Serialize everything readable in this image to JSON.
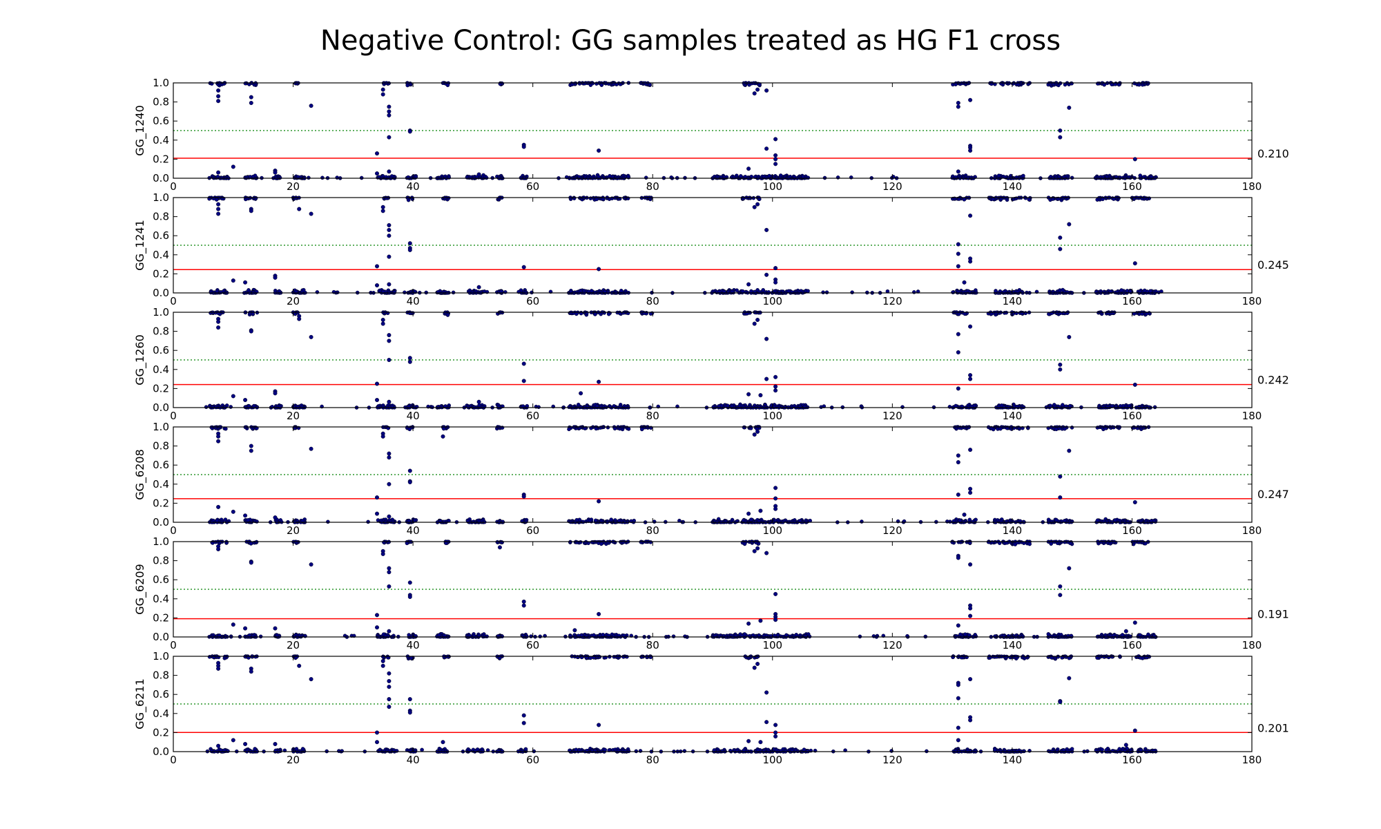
{
  "figure": {
    "title": "Negative Control: GG samples treated as HG F1 cross"
  },
  "chart_data": [
    {
      "type": "scatter",
      "ylabel": "GG_1240",
      "threshold": 0.21,
      "threshold_label": "0.210",
      "xlim": [
        0,
        180
      ],
      "ylim": [
        0,
        1.0
      ],
      "reference_line": 0.5,
      "xticks": [
        0,
        20,
        40,
        60,
        80,
        100,
        120,
        140,
        160,
        180
      ],
      "yticks": [
        0.0,
        0.2,
        0.4,
        0.6,
        0.8,
        1.0
      ],
      "marker_color": "#000080",
      "threshold_color": "#ff0000",
      "reference_color": "#008000",
      "points": [
        [
          7.5,
          0.92
        ],
        [
          7.5,
          0.86
        ],
        [
          7.5,
          0.81
        ],
        [
          13,
          0.85
        ],
        [
          13,
          0.79
        ],
        [
          23,
          0.76
        ],
        [
          35,
          0.93
        ],
        [
          35,
          0.88
        ],
        [
          36,
          0.75
        ],
        [
          36,
          0.7
        ],
        [
          36,
          0.66
        ],
        [
          36,
          0.43
        ],
        [
          39.5,
          0.5
        ],
        [
          39.5,
          0.49
        ],
        [
          58.5,
          0.35
        ],
        [
          58.5,
          0.33
        ],
        [
          71,
          0.29
        ],
        [
          34,
          0.26
        ],
        [
          99,
          0.31
        ],
        [
          100.5,
          0.41
        ],
        [
          100.5,
          0.24
        ],
        [
          100.5,
          0.2
        ],
        [
          100.5,
          0.15
        ],
        [
          97,
          0.89
        ],
        [
          97.5,
          0.93
        ],
        [
          99,
          0.92
        ],
        [
          131,
          0.79
        ],
        [
          131,
          0.75
        ],
        [
          133,
          0.82
        ],
        [
          133,
          0.34
        ],
        [
          133,
          0.32
        ],
        [
          133,
          0.29
        ],
        [
          148,
          0.5
        ],
        [
          148,
          0.43
        ],
        [
          149.5,
          0.74
        ],
        [
          160.5,
          0.2
        ],
        [
          10,
          0.12
        ],
        [
          7.5,
          0.06
        ],
        [
          17,
          0.08
        ],
        [
          17,
          0.06
        ],
        [
          34,
          0.05
        ],
        [
          36,
          0.07
        ],
        [
          51,
          0.04
        ],
        [
          96,
          0.1
        ],
        [
          131,
          0.07
        ]
      ]
    },
    {
      "type": "scatter",
      "ylabel": "GG_1241",
      "threshold": 0.245,
      "threshold_label": "0.245",
      "xlim": [
        0,
        180
      ],
      "ylim": [
        0,
        1.0
      ],
      "reference_line": 0.5,
      "xticks": [
        0,
        20,
        40,
        60,
        80,
        100,
        120,
        140,
        160,
        180
      ],
      "yticks": [
        0.0,
        0.2,
        0.4,
        0.6,
        0.8,
        1.0
      ],
      "marker_color": "#000080",
      "threshold_color": "#ff0000",
      "reference_color": "#008000",
      "points": [
        [
          7.5,
          0.93
        ],
        [
          7.5,
          0.88
        ],
        [
          7.5,
          0.83
        ],
        [
          13,
          0.88
        ],
        [
          13,
          0.86
        ],
        [
          21,
          0.88
        ],
        [
          23,
          0.83
        ],
        [
          35,
          0.9
        ],
        [
          35,
          0.86
        ],
        [
          36,
          0.71
        ],
        [
          36,
          0.66
        ],
        [
          36,
          0.6
        ],
        [
          36,
          0.38
        ],
        [
          39.5,
          0.52
        ],
        [
          39.5,
          0.47
        ],
        [
          39.5,
          0.45
        ],
        [
          58.5,
          0.27
        ],
        [
          71,
          0.25
        ],
        [
          34,
          0.28
        ],
        [
          99,
          0.66
        ],
        [
          99,
          0.19
        ],
        [
          100.5,
          0.26
        ],
        [
          100.5,
          0.14
        ],
        [
          100.5,
          0.11
        ],
        [
          97,
          0.9
        ],
        [
          97.5,
          0.93
        ],
        [
          131,
          0.51
        ],
        [
          131,
          0.41
        ],
        [
          131,
          0.28
        ],
        [
          133,
          0.81
        ],
        [
          133,
          0.36
        ],
        [
          133,
          0.33
        ],
        [
          148,
          0.58
        ],
        [
          148,
          0.46
        ],
        [
          149.5,
          0.72
        ],
        [
          160.5,
          0.31
        ],
        [
          10,
          0.13
        ],
        [
          12,
          0.11
        ],
        [
          17,
          0.18
        ],
        [
          17,
          0.16
        ],
        [
          34,
          0.08
        ],
        [
          36,
          0.09
        ],
        [
          51,
          0.06
        ],
        [
          96,
          0.09
        ],
        [
          132,
          0.11
        ]
      ]
    },
    {
      "type": "scatter",
      "ylabel": "GG_1260",
      "threshold": 0.242,
      "threshold_label": "0.242",
      "xlim": [
        0,
        180
      ],
      "ylim": [
        0,
        1.0
      ],
      "reference_line": 0.5,
      "xticks": [
        0,
        20,
        40,
        60,
        80,
        100,
        120,
        140,
        160,
        180
      ],
      "yticks": [
        0.0,
        0.2,
        0.4,
        0.6,
        0.8,
        1.0
      ],
      "marker_color": "#000080",
      "threshold_color": "#ff0000",
      "reference_color": "#008000",
      "points": [
        [
          7.5,
          0.93
        ],
        [
          7.5,
          0.9
        ],
        [
          7.5,
          0.84
        ],
        [
          13,
          0.81
        ],
        [
          13,
          0.8
        ],
        [
          21,
          0.96
        ],
        [
          21,
          0.93
        ],
        [
          23,
          0.74
        ],
        [
          35,
          0.92
        ],
        [
          35,
          0.88
        ],
        [
          36,
          0.76
        ],
        [
          36,
          0.7
        ],
        [
          36,
          0.5
        ],
        [
          39.5,
          0.52
        ],
        [
          39.5,
          0.48
        ],
        [
          58.5,
          0.46
        ],
        [
          58.5,
          0.28
        ],
        [
          71,
          0.27
        ],
        [
          34,
          0.25
        ],
        [
          68,
          0.15
        ],
        [
          99,
          0.72
        ],
        [
          99,
          0.3
        ],
        [
          100.5,
          0.32
        ],
        [
          100.5,
          0.22
        ],
        [
          100.5,
          0.18
        ],
        [
          97,
          0.88
        ],
        [
          97.5,
          0.92
        ],
        [
          131,
          0.77
        ],
        [
          131,
          0.58
        ],
        [
          131,
          0.2
        ],
        [
          133,
          0.85
        ],
        [
          133,
          0.34
        ],
        [
          133,
          0.3
        ],
        [
          148,
          0.45
        ],
        [
          148,
          0.4
        ],
        [
          149.5,
          0.74
        ],
        [
          160.5,
          0.24
        ],
        [
          10,
          0.12
        ],
        [
          12,
          0.08
        ],
        [
          17,
          0.17
        ],
        [
          17,
          0.15
        ],
        [
          34,
          0.08
        ],
        [
          36,
          0.06
        ],
        [
          51,
          0.06
        ],
        [
          96,
          0.14
        ],
        [
          98,
          0.13
        ]
      ]
    },
    {
      "type": "scatter",
      "ylabel": "GG_6208",
      "threshold": 0.247,
      "threshold_label": "0.247",
      "xlim": [
        0,
        180
      ],
      "ylim": [
        0,
        1.0
      ],
      "reference_line": 0.5,
      "xticks": [
        0,
        20,
        40,
        60,
        80,
        100,
        120,
        140,
        160,
        180
      ],
      "yticks": [
        0.0,
        0.2,
        0.4,
        0.6,
        0.8,
        1.0
      ],
      "marker_color": "#000080",
      "threshold_color": "#ff0000",
      "reference_color": "#008000",
      "points": [
        [
          7.5,
          0.93
        ],
        [
          7.5,
          0.9
        ],
        [
          7.5,
          0.85
        ],
        [
          13,
          0.8
        ],
        [
          13,
          0.75
        ],
        [
          23,
          0.77
        ],
        [
          35,
          0.93
        ],
        [
          35,
          0.9
        ],
        [
          36,
          0.72
        ],
        [
          36,
          0.68
        ],
        [
          36,
          0.4
        ],
        [
          39.5,
          0.54
        ],
        [
          39.5,
          0.43
        ],
        [
          39.5,
          0.42
        ],
        [
          45,
          0.9
        ],
        [
          58.5,
          0.29
        ],
        [
          58.5,
          0.27
        ],
        [
          71,
          0.22
        ],
        [
          34,
          0.26
        ],
        [
          100.5,
          0.36
        ],
        [
          100.5,
          0.25
        ],
        [
          100.5,
          0.17
        ],
        [
          100.5,
          0.14
        ],
        [
          97,
          0.92
        ],
        [
          97.5,
          0.95
        ],
        [
          131,
          0.7
        ],
        [
          131,
          0.63
        ],
        [
          131,
          0.29
        ],
        [
          133,
          0.76
        ],
        [
          133,
          0.35
        ],
        [
          133,
          0.31
        ],
        [
          148,
          0.48
        ],
        [
          148,
          0.26
        ],
        [
          149.5,
          0.75
        ],
        [
          160.5,
          0.21
        ],
        [
          7.5,
          0.16
        ],
        [
          10,
          0.11
        ],
        [
          12,
          0.07
        ],
        [
          17,
          0.05
        ],
        [
          34,
          0.09
        ],
        [
          36,
          0.06
        ],
        [
          96,
          0.09
        ],
        [
          98,
          0.12
        ],
        [
          132,
          0.08
        ]
      ]
    },
    {
      "type": "scatter",
      "ylabel": "GG_6209",
      "threshold": 0.191,
      "threshold_label": "0.191",
      "xlim": [
        0,
        180
      ],
      "ylim": [
        0,
        1.0
      ],
      "reference_line": 0.5,
      "xticks": [
        0,
        20,
        40,
        60,
        80,
        100,
        120,
        140,
        160,
        180
      ],
      "yticks": [
        0.0,
        0.2,
        0.4,
        0.6,
        0.8,
        1.0
      ],
      "marker_color": "#000080",
      "threshold_color": "#ff0000",
      "reference_color": "#008000",
      "points": [
        [
          7.5,
          0.95
        ],
        [
          7.5,
          0.92
        ],
        [
          13,
          0.79
        ],
        [
          13,
          0.78
        ],
        [
          23,
          0.76
        ],
        [
          35,
          0.9
        ],
        [
          35,
          0.87
        ],
        [
          36,
          0.72
        ],
        [
          36,
          0.68
        ],
        [
          36,
          0.53
        ],
        [
          39.5,
          0.57
        ],
        [
          39.5,
          0.44
        ],
        [
          39.5,
          0.42
        ],
        [
          54.5,
          0.94
        ],
        [
          58.5,
          0.37
        ],
        [
          58.5,
          0.33
        ],
        [
          71,
          0.24
        ],
        [
          34,
          0.23
        ],
        [
          97,
          0.9
        ],
        [
          97.5,
          0.93
        ],
        [
          99,
          0.88
        ],
        [
          100.5,
          0.45
        ],
        [
          100.5,
          0.24
        ],
        [
          100.5,
          0.21
        ],
        [
          100.5,
          0.18
        ],
        [
          98,
          0.17
        ],
        [
          131,
          0.85
        ],
        [
          131,
          0.83
        ],
        [
          133,
          0.76
        ],
        [
          133,
          0.33
        ],
        [
          133,
          0.3
        ],
        [
          133,
          0.22
        ],
        [
          148,
          0.53
        ],
        [
          148,
          0.44
        ],
        [
          149.5,
          0.72
        ],
        [
          160.5,
          0.15
        ],
        [
          10,
          0.13
        ],
        [
          12,
          0.09
        ],
        [
          17,
          0.09
        ],
        [
          34,
          0.1
        ],
        [
          36,
          0.06
        ],
        [
          67,
          0.07
        ],
        [
          96,
          0.14
        ],
        [
          131,
          0.12
        ],
        [
          159,
          0.06
        ]
      ]
    },
    {
      "type": "scatter",
      "ylabel": "GG_6211",
      "threshold": 0.201,
      "threshold_label": "0.201",
      "xlim": [
        0,
        180
      ],
      "ylim": [
        0,
        1.0
      ],
      "reference_line": 0.5,
      "xticks": [
        0,
        20,
        40,
        60,
        80,
        100,
        120,
        140,
        160,
        180
      ],
      "yticks": [
        0.0,
        0.2,
        0.4,
        0.6,
        0.8,
        1.0
      ],
      "marker_color": "#000080",
      "threshold_color": "#ff0000",
      "reference_color": "#008000",
      "points": [
        [
          7.5,
          0.93
        ],
        [
          7.5,
          0.9
        ],
        [
          7.5,
          0.87
        ],
        [
          13,
          0.87
        ],
        [
          13,
          0.84
        ],
        [
          21,
          0.9
        ],
        [
          23,
          0.76
        ],
        [
          35,
          0.95
        ],
        [
          35,
          0.9
        ],
        [
          36,
          0.82
        ],
        [
          36,
          0.74
        ],
        [
          36,
          0.68
        ],
        [
          36,
          0.55
        ],
        [
          36,
          0.47
        ],
        [
          39.5,
          0.55
        ],
        [
          39.5,
          0.43
        ],
        [
          39.5,
          0.41
        ],
        [
          58.5,
          0.38
        ],
        [
          58.5,
          0.3
        ],
        [
          71,
          0.28
        ],
        [
          34,
          0.2
        ],
        [
          97,
          0.88
        ],
        [
          97.5,
          0.92
        ],
        [
          99,
          0.62
        ],
        [
          99,
          0.31
        ],
        [
          100.5,
          0.28
        ],
        [
          100.5,
          0.2
        ],
        [
          100.5,
          0.16
        ],
        [
          131,
          0.72
        ],
        [
          131,
          0.7
        ],
        [
          131,
          0.56
        ],
        [
          131,
          0.25
        ],
        [
          133,
          0.76
        ],
        [
          133,
          0.36
        ],
        [
          133,
          0.33
        ],
        [
          148,
          0.53
        ],
        [
          148,
          0.52
        ],
        [
          149.5,
          0.77
        ],
        [
          160.5,
          0.22
        ],
        [
          7.5,
          0.06
        ],
        [
          10,
          0.12
        ],
        [
          12,
          0.08
        ],
        [
          17,
          0.08
        ],
        [
          34,
          0.1
        ],
        [
          45,
          0.1
        ],
        [
          96,
          0.11
        ],
        [
          98,
          0.1
        ],
        [
          131,
          0.12
        ],
        [
          159,
          0.07
        ]
      ]
    }
  ]
}
